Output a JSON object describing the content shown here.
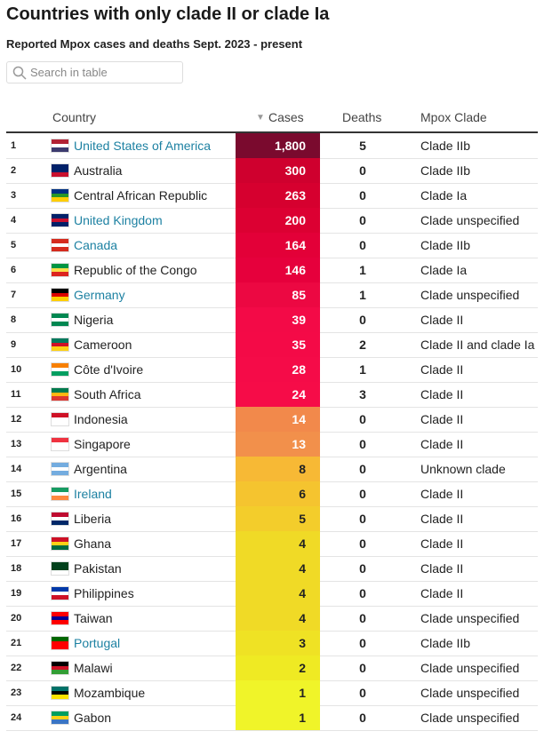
{
  "header": {
    "title": "Countries with only clade II or clade Ia",
    "subtitle": "Reported Mpox cases and deaths Sept. 2023 - present"
  },
  "search": {
    "placeholder": "Search in table"
  },
  "table": {
    "columns": [
      "Country",
      "Cases",
      "Deaths",
      "Mpox Clade"
    ],
    "rows": [
      {
        "rank": "1",
        "country": "United States of America",
        "link": true,
        "cases": "1,800",
        "deaths": "5",
        "clade": "Clade IIb",
        "color": "#7a0a2e"
      },
      {
        "rank": "2",
        "country": "Australia",
        "link": false,
        "cases": "300",
        "deaths": "0",
        "clade": "Clade IIb",
        "color": "#cf002e"
      },
      {
        "rank": "3",
        "country": "Central African Republic",
        "link": false,
        "cases": "263",
        "deaths": "0",
        "clade": "Clade Ia",
        "color": "#d6002f"
      },
      {
        "rank": "4",
        "country": "United Kingdom",
        "link": true,
        "cases": "200",
        "deaths": "0",
        "clade": "Clade unspecified",
        "color": "#dc0032"
      },
      {
        "rank": "5",
        "country": "Canada",
        "link": true,
        "cases": "164",
        "deaths": "0",
        "clade": "Clade IIb",
        "color": "#e30038"
      },
      {
        "rank": "6",
        "country": "Republic of the Congo",
        "link": false,
        "cases": "146",
        "deaths": "1",
        "clade": "Clade Ia",
        "color": "#e6003c"
      },
      {
        "rank": "7",
        "country": "Germany",
        "link": true,
        "cases": "85",
        "deaths": "1",
        "clade": "Clade unspecified",
        "color": "#ec0842"
      },
      {
        "rank": "8",
        "country": "Nigeria",
        "link": false,
        "cases": "39",
        "deaths": "0",
        "clade": "Clade II",
        "color": "#f30a47"
      },
      {
        "rank": "9",
        "country": "Cameroon",
        "link": false,
        "cases": "35",
        "deaths": "2",
        "clade": "Clade II and clade Ia",
        "color": "#f40a47"
      },
      {
        "rank": "10",
        "country": "Côte d'Ivoire",
        "link": false,
        "cases": "28",
        "deaths": "1",
        "clade": "Clade II",
        "color": "#f50b48"
      },
      {
        "rank": "11",
        "country": "South Africa",
        "link": false,
        "cases": "24",
        "deaths": "3",
        "clade": "Clade II",
        "color": "#f60c48"
      },
      {
        "rank": "12",
        "country": "Indonesia",
        "link": false,
        "cases": "14",
        "deaths": "0",
        "clade": "Clade II",
        "color": "#f2894b"
      },
      {
        "rank": "13",
        "country": "Singapore",
        "link": false,
        "cases": "13",
        "deaths": "0",
        "clade": "Clade II",
        "color": "#f2904b"
      },
      {
        "rank": "14",
        "country": "Argentina",
        "link": false,
        "cases": "8",
        "deaths": "0",
        "clade": "Unknown clade",
        "color": "#f7b935"
      },
      {
        "rank": "15",
        "country": "Ireland",
        "link": true,
        "cases": "6",
        "deaths": "0",
        "clade": "Clade II",
        "color": "#f5c42f"
      },
      {
        "rank": "16",
        "country": "Liberia",
        "link": false,
        "cases": "5",
        "deaths": "0",
        "clade": "Clade II",
        "color": "#f3cd2b"
      },
      {
        "rank": "17",
        "country": "Ghana",
        "link": false,
        "cases": "4",
        "deaths": "0",
        "clade": "Clade II",
        "color": "#f0da26"
      },
      {
        "rank": "18",
        "country": "Pakistan",
        "link": false,
        "cases": "4",
        "deaths": "0",
        "clade": "Clade II",
        "color": "#f0da26"
      },
      {
        "rank": "19",
        "country": "Philippines",
        "link": false,
        "cases": "4",
        "deaths": "0",
        "clade": "Clade II",
        "color": "#f0da26"
      },
      {
        "rank": "20",
        "country": "Taiwan",
        "link": false,
        "cases": "4",
        "deaths": "0",
        "clade": "Clade unspecified",
        "color": "#f0da26"
      },
      {
        "rank": "21",
        "country": "Portugal",
        "link": true,
        "cases": "3",
        "deaths": "0",
        "clade": "Clade IIb",
        "color": "#efe224"
      },
      {
        "rank": "22",
        "country": "Malawi",
        "link": false,
        "cases": "2",
        "deaths": "0",
        "clade": "Clade unspecified",
        "color": "#efea23"
      },
      {
        "rank": "23",
        "country": "Mozambique",
        "link": false,
        "cases": "1",
        "deaths": "0",
        "clade": "Clade unspecified",
        "color": "#f0f429"
      },
      {
        "rank": "24",
        "country": "Gabon",
        "link": false,
        "cases": "1",
        "deaths": "0",
        "clade": "Clade unspecified",
        "color": "#f0f429"
      }
    ]
  }
}
